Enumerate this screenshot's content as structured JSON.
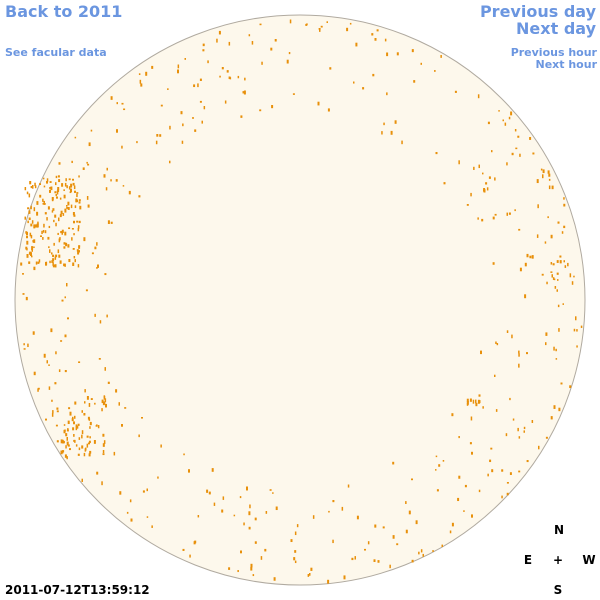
{
  "header": {
    "back_link": "Back to 2011",
    "facular_link": "See facular data",
    "previous_day": "Previous day",
    "next_day": "Next day",
    "previous_hour": "Previous hour",
    "next_hour": "Next hour"
  },
  "footer": {
    "timestamp": "2011-07-12T13:59:12"
  },
  "compass": {
    "north": "N",
    "east": "E",
    "center": "+",
    "west": "W",
    "south": "S"
  }
}
